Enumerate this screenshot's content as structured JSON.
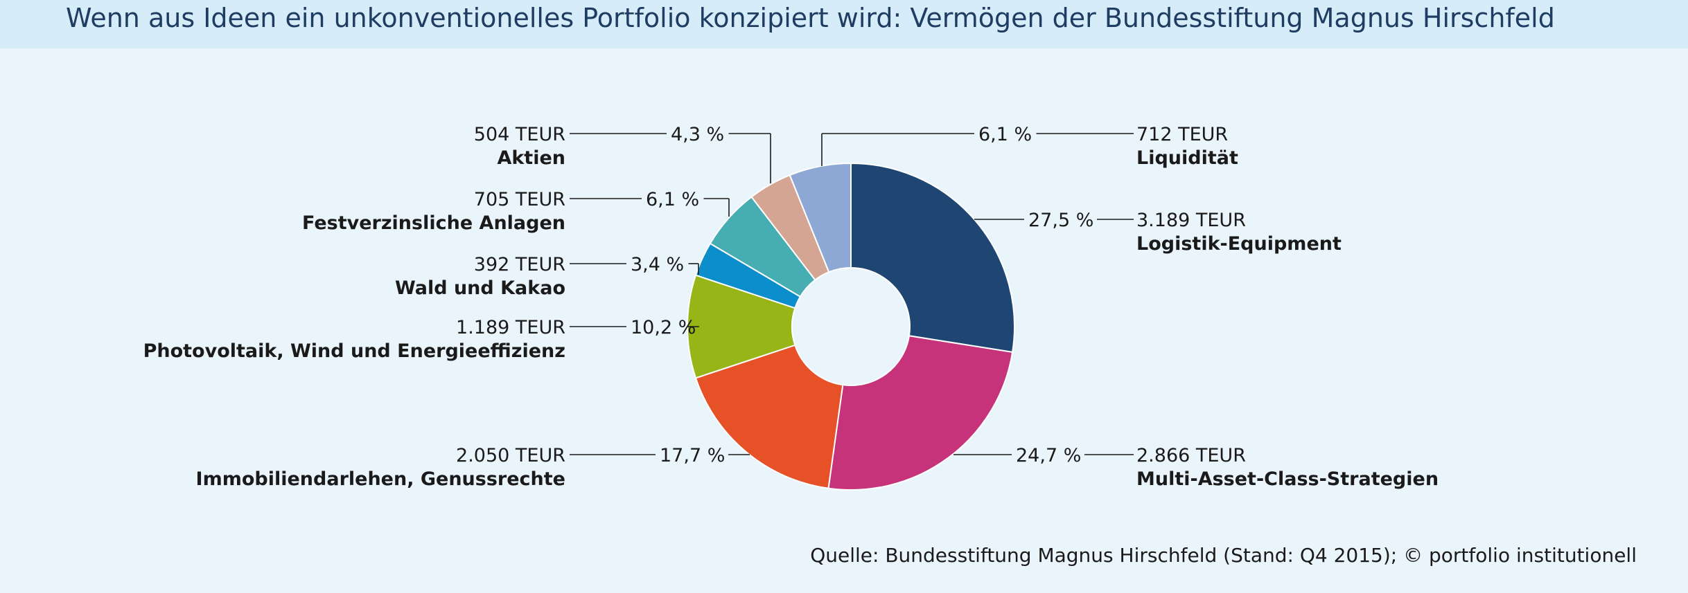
{
  "title": "Wenn aus Ideen ein unkonventionelles Portfolio konzipiert wird: Vermögen der Bundesstiftung Magnus Hirschfeld",
  "source": "Quelle: Bundesstiftung Magnus Hirschfeld (Stand: Q4 2015); © portfolio institutionell",
  "chart_data": {
    "type": "pie",
    "style": "donut",
    "title": "",
    "legend": "none",
    "slices": [
      {
        "label": "Logistik-Equipment",
        "value": "3.189 TEUR",
        "percent": 27.5,
        "percent_label": "27,5 %",
        "color": "#1f4673",
        "side": "right"
      },
      {
        "label": "Multi-Asset-Class-Strategien",
        "value": "2.866 TEUR",
        "percent": 24.7,
        "percent_label": "24,7 %",
        "color": "#c7337a",
        "side": "right"
      },
      {
        "label": "Immobiliendarlehen, Genussrechte",
        "value": "2.050 TEUR",
        "percent": 17.7,
        "percent_label": "17,7 %",
        "color": "#e65128",
        "side": "left"
      },
      {
        "label": "Photovoltaik, Wind und Energieeffizienz",
        "value": "1.189 TEUR",
        "percent": 10.2,
        "percent_label": "10,2 %",
        "color": "#98b518",
        "side": "left"
      },
      {
        "label": "Wald und Kakao",
        "value": "392 TEUR",
        "percent": 3.4,
        "percent_label": "3,4 %",
        "color": "#0b8ecb",
        "side": "left"
      },
      {
        "label": "Festverzinsliche Anlagen",
        "value": "705 TEUR",
        "percent": 6.1,
        "percent_label": "6,1 %",
        "color": "#46adb3",
        "side": "left"
      },
      {
        "label": "Aktien",
        "value": "504 TEUR",
        "percent": 4.3,
        "percent_label": "4,3 %",
        "color": "#d4a592",
        "side": "left"
      },
      {
        "label": "Liquidität",
        "value": "712 TEUR",
        "percent": 6.1,
        "percent_label": "6,1 %",
        "color": "#8ea8d6",
        "side": "right"
      }
    ]
  }
}
